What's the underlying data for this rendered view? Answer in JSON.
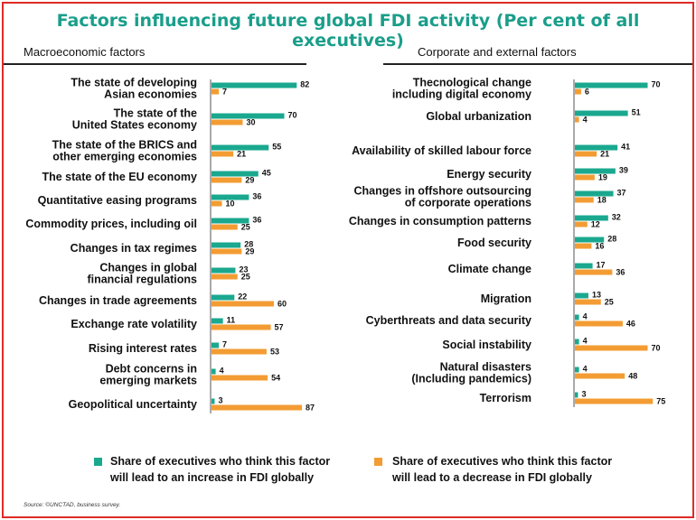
{
  "title": "Factors influencing future global FDI activity (Per cent of all executives)",
  "colors": {
    "increase": "#1aa88f",
    "decrease": "#f39c33",
    "frame": "#e02a2a",
    "title": "#1a9e8a"
  },
  "chart_data": [
    {
      "type": "bar",
      "panel_title": "Macroeconomic factors",
      "categories": [
        [
          "The state of developing",
          "Asian economies"
        ],
        [
          "The state of the",
          "United States economy"
        ],
        [
          "The state of the BRICS and",
          "other emerging economies"
        ],
        [
          "The state of the EU economy"
        ],
        [
          "Quantitative easing programs"
        ],
        [
          "Commodity prices, including oil"
        ],
        [
          "Changes in tax regimes"
        ],
        [
          "Changes in global",
          "financial regulations"
        ],
        [
          "Changes in trade agreements"
        ],
        [
          "Exchange rate volatility"
        ],
        [
          "Rising interest rates"
        ],
        [
          "Debt concerns in",
          "emerging markets"
        ],
        [
          "Geopolitical uncertainty"
        ]
      ],
      "series": [
        {
          "name": "Share of executives who think this factor will lead to an increase in FDI globally",
          "values": [
            82,
            70,
            55,
            45,
            36,
            36,
            28,
            23,
            22,
            11,
            7,
            4,
            3
          ]
        },
        {
          "name": "Share of executives who think this factor will lead to a decrease in FDI globally",
          "values": [
            7,
            30,
            21,
            29,
            10,
            25,
            29,
            25,
            60,
            57,
            53,
            54,
            87
          ]
        }
      ]
    },
    {
      "type": "bar",
      "panel_title": "Corporate and external factors",
      "categories": [
        [
          "Thecnological change",
          "including digital economy"
        ],
        [
          "Global urbanization"
        ],
        [
          "Availability of skilled labour force"
        ],
        [
          "Energy security"
        ],
        [
          "Changes in offshore outsourcing",
          "of corporate operations"
        ],
        [
          "Changes in consumption patterns"
        ],
        [
          "Food security"
        ],
        [
          "Climate change"
        ],
        [
          "Migration"
        ],
        [
          "Cyberthreats and data security"
        ],
        [
          "Social instability"
        ],
        [
          "Natural disasters",
          "(Including pandemics)"
        ],
        [
          "Terrorism"
        ]
      ],
      "series": [
        {
          "name": "Share of executives who think this factor will lead to an increase in FDI globally",
          "values": [
            70,
            51,
            41,
            39,
            37,
            32,
            28,
            17,
            13,
            4,
            4,
            4,
            3
          ]
        },
        {
          "name": "Share of executives who think this factor will lead to a decrease in FDI globally",
          "values": [
            6,
            4,
            21,
            19,
            18,
            12,
            16,
            36,
            25,
            46,
            70,
            48,
            75
          ]
        }
      ]
    }
  ],
  "legend": {
    "increase_lines": [
      "Share of executives who think this factor",
      "will lead to an increase in FDI globally"
    ],
    "decrease_lines": [
      "Share of executives who think this factor",
      "will lead to a decrease in FDI globally"
    ]
  },
  "source": "Source: ©UNCTAD, business survey."
}
